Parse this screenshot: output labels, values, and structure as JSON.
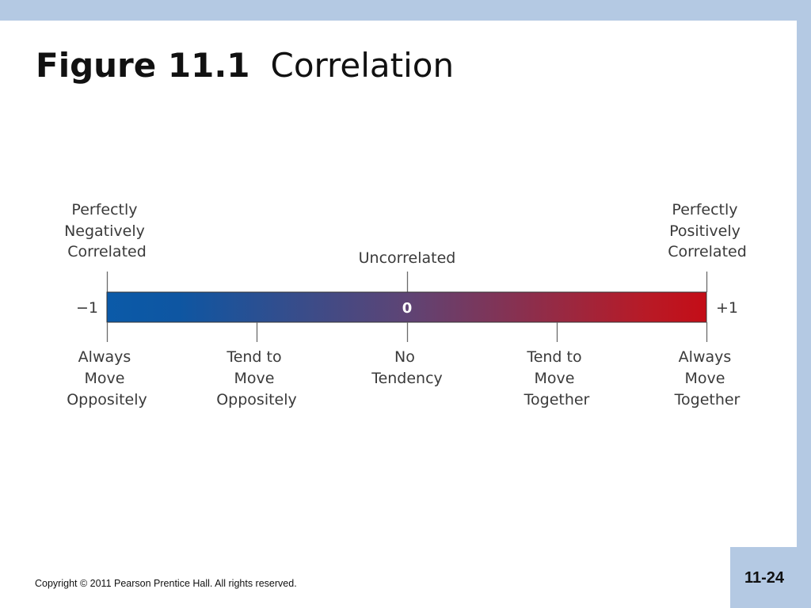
{
  "title": {
    "bold": "Figure 11.1",
    "normal": "Correlation"
  },
  "footer": "Copyright © 2011 Pearson Prentice Hall. All rights reserved.",
  "page_number": "11-24",
  "colors": {
    "negative": "#0b5aa8",
    "middle": "#5e4475",
    "positive": "#c40d17",
    "panel": "#b4c9e3"
  },
  "scale": {
    "min_label": "−1",
    "max_label": "+1",
    "center_label": "0",
    "top_labels": [
      [
        "Perfectly",
        "Negatively",
        "Correlated"
      ],
      [
        "Uncorrelated"
      ],
      [
        "Perfectly",
        "Positively",
        "Correlated"
      ]
    ],
    "bottom_labels": [
      [
        "Always",
        "Move",
        "Oppositely"
      ],
      [
        "Tend to",
        "Move",
        "Oppositely"
      ],
      [
        "No",
        "Tendency"
      ],
      [
        "Tend to",
        "Move",
        "Together"
      ],
      [
        "Always",
        "Move",
        "Together"
      ]
    ]
  }
}
